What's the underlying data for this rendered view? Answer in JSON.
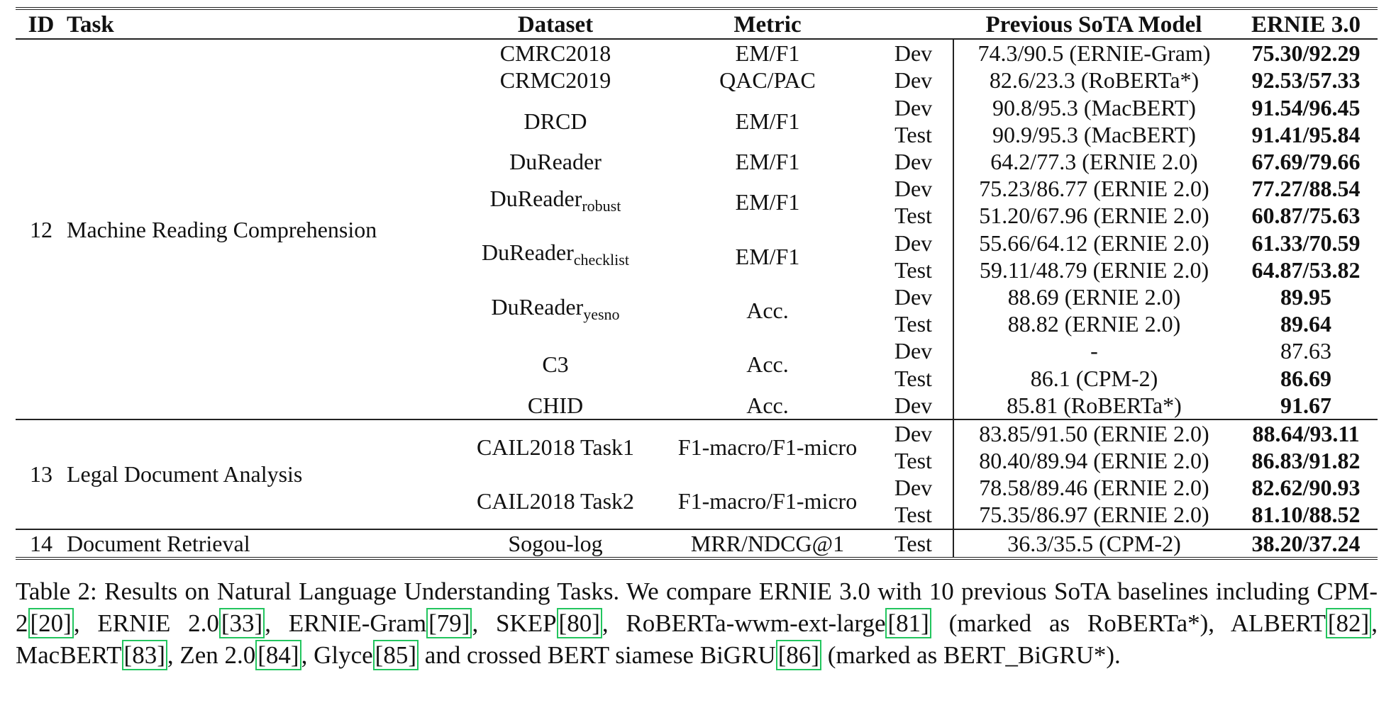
{
  "table": {
    "headers": {
      "id": "ID",
      "task": "Task",
      "dataset": "Dataset",
      "metric": "Metric",
      "split": "",
      "sota": "Previous SoTA Model",
      "ernie": "ERNIE 3.0"
    },
    "groups": [
      {
        "id": "12",
        "task": "Machine Reading Comprehension",
        "datasets": [
          {
            "name": "CMRC2018",
            "sub": "",
            "metric": "EM/F1",
            "rows": [
              {
                "split": "Dev",
                "sota": "74.3/90.5 (ERNIE-Gram)",
                "ernie": "75.30/92.29",
                "best": true
              }
            ]
          },
          {
            "name": "CRMC2019",
            "sub": "",
            "metric": "QAC/PAC",
            "rows": [
              {
                "split": "Dev",
                "sota": "82.6/23.3 (RoBERTa*)",
                "ernie": "92.53/57.33",
                "best": true
              }
            ]
          },
          {
            "name": "DRCD",
            "sub": "",
            "metric": "EM/F1",
            "rows": [
              {
                "split": "Dev",
                "sota": "90.8/95.3 (MacBERT)",
                "ernie": "91.54/96.45",
                "best": true
              },
              {
                "split": "Test",
                "sota": "90.9/95.3 (MacBERT)",
                "ernie": "91.41/95.84",
                "best": true
              }
            ]
          },
          {
            "name": "DuReader",
            "sub": "",
            "metric": "EM/F1",
            "rows": [
              {
                "split": "Dev",
                "sota": "64.2/77.3 (ERNIE 2.0)",
                "ernie": "67.69/79.66",
                "best": true
              }
            ]
          },
          {
            "name": "DuReader",
            "sub": "robust",
            "metric": "EM/F1",
            "rows": [
              {
                "split": "Dev",
                "sota": "75.23/86.77 (ERNIE 2.0)",
                "ernie": "77.27/88.54",
                "best": true
              },
              {
                "split": "Test",
                "sota": "51.20/67.96 (ERNIE 2.0)",
                "ernie": "60.87/75.63",
                "best": true
              }
            ]
          },
          {
            "name": "DuReader",
            "sub": "checklist",
            "metric": "EM/F1",
            "rows": [
              {
                "split": "Dev",
                "sota": "55.66/64.12 (ERNIE 2.0)",
                "ernie": "61.33/70.59",
                "best": true
              },
              {
                "split": "Test",
                "sota": "59.11/48.79 (ERNIE 2.0)",
                "ernie": "64.87/53.82",
                "best": true
              }
            ]
          },
          {
            "name": "DuReader",
            "sub": "yesno",
            "metric": "Acc.",
            "rows": [
              {
                "split": "Dev",
                "sota": "88.69 (ERNIE 2.0)",
                "ernie": "89.95",
                "best": true
              },
              {
                "split": "Test",
                "sota": "88.82 (ERNIE 2.0)",
                "ernie": "89.64",
                "best": true
              }
            ]
          },
          {
            "name": "C3",
            "sub": "",
            "metric": "Acc.",
            "rows": [
              {
                "split": "Dev",
                "sota": "-",
                "ernie": "87.63",
                "best": false
              },
              {
                "split": "Test",
                "sota": "86.1 (CPM-2)",
                "ernie": "86.69",
                "best": true
              }
            ]
          },
          {
            "name": "CHID",
            "sub": "",
            "metric": "Acc.",
            "rows": [
              {
                "split": "Dev",
                "sota": "85.81 (RoBERTa*)",
                "ernie": "91.67",
                "best": true
              }
            ]
          }
        ]
      },
      {
        "id": "13",
        "task": "Legal Document Analysis",
        "datasets": [
          {
            "name": "CAIL2018 Task1",
            "sub": "",
            "metric": "F1-macro/F1-micro",
            "rows": [
              {
                "split": "Dev",
                "sota": "83.85/91.50 (ERNIE 2.0)",
                "ernie": "88.64/93.11",
                "best": true
              },
              {
                "split": "Test",
                "sota": "80.40/89.94 (ERNIE 2.0)",
                "ernie": "86.83/91.82",
                "best": true
              }
            ]
          },
          {
            "name": "CAIL2018 Task2",
            "sub": "",
            "metric": "F1-macro/F1-micro",
            "rows": [
              {
                "split": "Dev",
                "sota": "78.58/89.46 (ERNIE 2.0)",
                "ernie": "82.62/90.93",
                "best": true
              },
              {
                "split": "Test",
                "sota": "75.35/86.97 (ERNIE 2.0)",
                "ernie": "81.10/88.52",
                "best": true
              }
            ]
          }
        ]
      },
      {
        "id": "14",
        "task": "Document Retrieval",
        "datasets": [
          {
            "name": "Sogou-log",
            "sub": "",
            "metric": "MRR/NDCG@1",
            "rows": [
              {
                "split": "Test",
                "sota": "36.3/35.5 (CPM-2)",
                "ernie": "38.20/37.24",
                "best": true
              }
            ]
          }
        ]
      }
    ]
  },
  "caption": [
    {
      "t": "Table 2:  Results on Natural Language Understanding Tasks.  We compare ERNIE 3.0 with 10 previous SoTA baselines including CPM-2"
    },
    {
      "t": "[20]",
      "cite": true
    },
    {
      "t": ", ERNIE 2.0"
    },
    {
      "t": "[33]",
      "cite": true
    },
    {
      "t": ", ERNIE-Gram"
    },
    {
      "t": "[79]",
      "cite": true
    },
    {
      "t": ", SKEP"
    },
    {
      "t": "[80]",
      "cite": true
    },
    {
      "t": ", RoBERTa-wwm-ext-large"
    },
    {
      "t": "[81]",
      "cite": true
    },
    {
      "t": " (marked as RoBERTa*), ALBERT"
    },
    {
      "t": "[82]",
      "cite": true
    },
    {
      "t": ", MacBERT"
    },
    {
      "t": "[83]",
      "cite": true
    },
    {
      "t": ", Zen 2.0"
    },
    {
      "t": "[84]",
      "cite": true
    },
    {
      "t": ", Glyce"
    },
    {
      "t": "[85]",
      "cite": true
    },
    {
      "t": " and crossed BERT siamese BiGRU"
    },
    {
      "t": "[86]",
      "cite": true
    },
    {
      "t": " (marked as BERT_BiGRU*)."
    }
  ]
}
